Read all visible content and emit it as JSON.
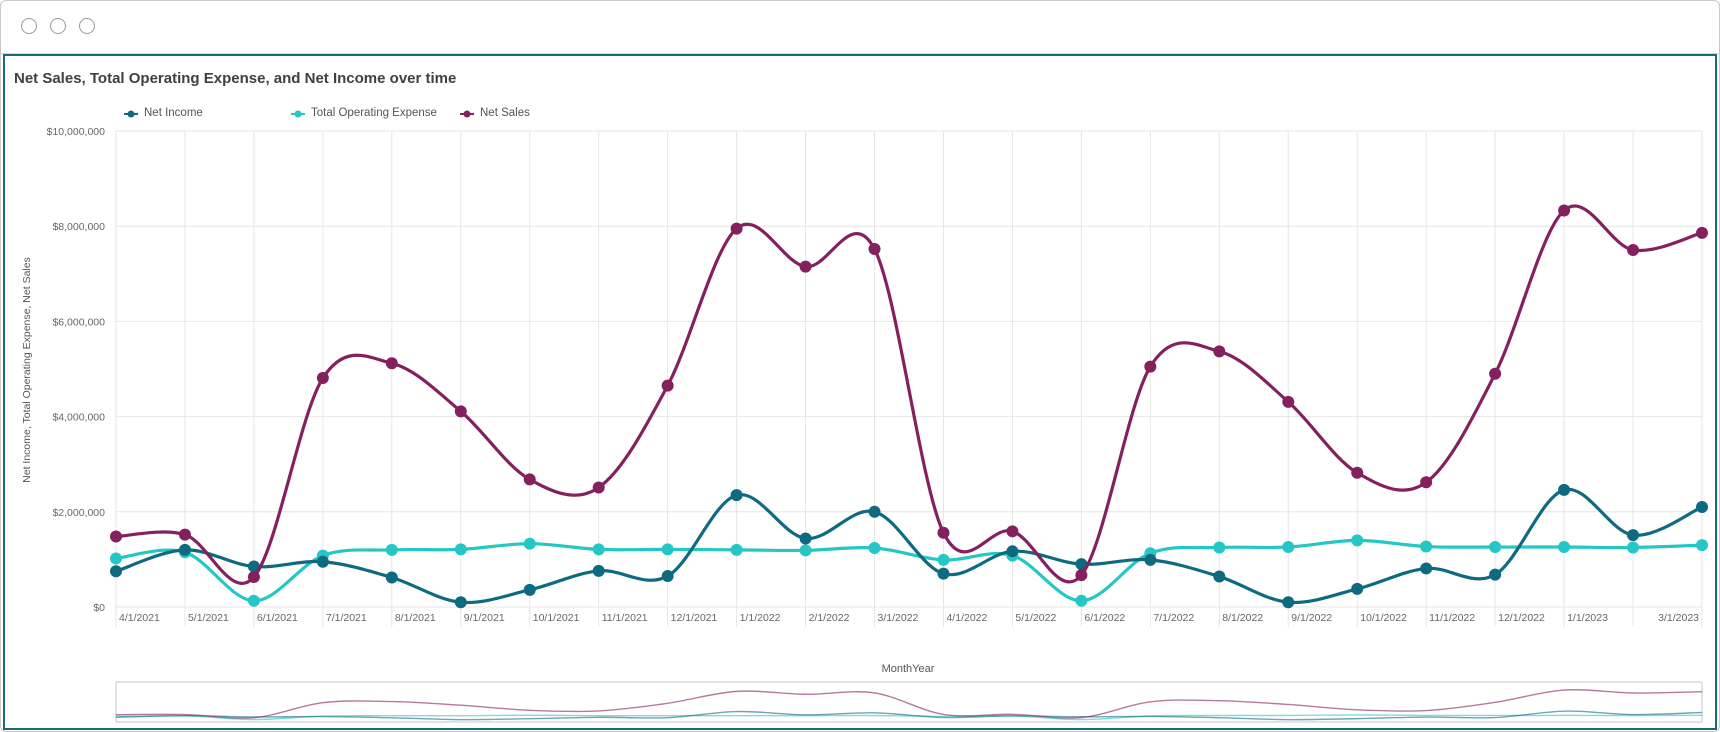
{
  "chart_data": {
    "type": "line",
    "title": "Net Sales, Total Operating Expense, and Net Income over time",
    "xlabel": "MonthYear",
    "ylabel": "Net Income, Total Operating Expense, Net Sales",
    "ylim": [
      0,
      10000000
    ],
    "y_ticks": [
      "$0",
      "$2,000,000",
      "$4,000,000",
      "$6,000,000",
      "$8,000,000",
      "$10,000,000"
    ],
    "x_tick_labels": [
      "4/1/2021",
      "5/1/2021",
      "6/1/2021",
      "7/1/2021",
      "8/1/2021",
      "9/1/2021",
      "10/1/2021",
      "11/1/2021",
      "12/1/2021",
      "1/1/2022",
      "2/1/2022",
      "3/1/2022",
      "4/1/2022",
      "5/1/2022",
      "6/1/2022",
      "7/1/2022",
      "8/1/2022",
      "9/1/2022",
      "10/1/2022",
      "11/1/2022",
      "12/1/2022",
      "1/1/2023",
      "",
      "3/1/2023"
    ],
    "x": [
      "4/1/2021",
      "5/1/2021",
      "6/1/2021",
      "7/1/2021",
      "8/1/2021",
      "9/1/2021",
      "10/1/2021",
      "11/1/2021",
      "12/1/2021",
      "1/1/2022",
      "2/1/2022",
      "3/1/2022",
      "4/1/2022",
      "5/1/2022",
      "6/1/2022",
      "7/1/2022",
      "8/1/2022",
      "9/1/2022",
      "10/1/2022",
      "11/1/2022",
      "12/1/2022",
      "1/1/2023",
      "2/1/2023",
      "3/1/2023"
    ],
    "grid": true,
    "legend_position": "top-left",
    "series": [
      {
        "name": "Net Income",
        "color": "#0e6a80",
        "values": [
          750000,
          1200000,
          850000,
          950000,
          620000,
          100000,
          360000,
          760000,
          650000,
          2350000,
          1440000,
          2000000,
          700000,
          1170000,
          900000,
          990000,
          640000,
          100000,
          380000,
          810000,
          680000,
          2460000,
          1510000,
          2100000
        ]
      },
      {
        "name": "Total Operating Expense",
        "color": "#24c6c6",
        "values": [
          1020000,
          1150000,
          130000,
          1080000,
          1200000,
          1210000,
          1330000,
          1210000,
          1210000,
          1200000,
          1190000,
          1240000,
          990000,
          1080000,
          130000,
          1130000,
          1250000,
          1260000,
          1400000,
          1270000,
          1260000,
          1260000,
          1250000,
          1300000
        ]
      },
      {
        "name": "Net Sales",
        "color": "#85205e",
        "values": [
          1480000,
          1520000,
          630000,
          4810000,
          5120000,
          4110000,
          2680000,
          2510000,
          4650000,
          7950000,
          7150000,
          7520000,
          1560000,
          1590000,
          670000,
          5050000,
          5370000,
          4310000,
          2820000,
          2620000,
          4900000,
          8330000,
          7500000,
          7860000
        ]
      }
    ]
  }
}
